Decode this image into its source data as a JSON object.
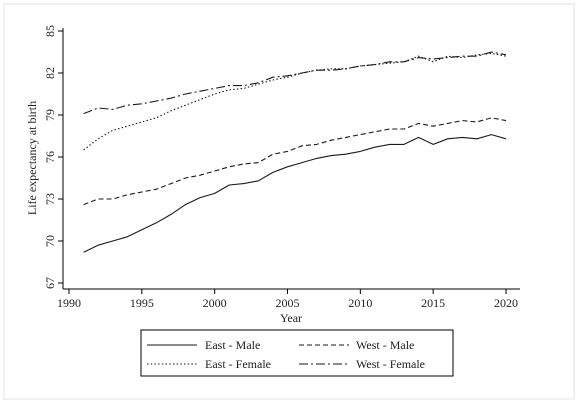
{
  "chart_data": {
    "type": "line",
    "xlabel": "Year",
    "ylabel": "Life expectancy at birth",
    "xlim": [
      1990,
      2021
    ],
    "ylim": [
      67,
      85
    ],
    "xticks": [
      1990,
      1995,
      2000,
      2005,
      2010,
      2015,
      2020
    ],
    "yticks": [
      67,
      70,
      73,
      76,
      79,
      82,
      85
    ],
    "grid": false,
    "legend_position": "bottom",
    "x": [
      1991,
      1992,
      1993,
      1994,
      1995,
      1996,
      1997,
      1998,
      1999,
      2000,
      2001,
      2002,
      2003,
      2004,
      2005,
      2006,
      2007,
      2008,
      2009,
      2010,
      2011,
      2012,
      2013,
      2014,
      2015,
      2016,
      2017,
      2018,
      2019,
      2020
    ],
    "series": [
      {
        "name": "East - Male",
        "dash": "solid",
        "values": [
          69.2,
          69.7,
          70.0,
          70.3,
          70.8,
          71.3,
          71.9,
          72.6,
          73.1,
          73.4,
          74.0,
          74.1,
          74.3,
          74.9,
          75.3,
          75.6,
          75.9,
          76.1,
          76.2,
          76.4,
          76.7,
          76.9,
          76.9,
          77.4,
          76.9,
          77.3,
          77.4,
          77.3,
          77.6,
          77.3
        ]
      },
      {
        "name": "West - Male",
        "dash": "dash",
        "values": [
          72.6,
          73.0,
          73.0,
          73.3,
          73.5,
          73.7,
          74.1,
          74.5,
          74.7,
          75.0,
          75.3,
          75.5,
          75.6,
          76.2,
          76.4,
          76.8,
          76.9,
          77.2,
          77.4,
          77.6,
          77.8,
          78.0,
          78.0,
          78.4,
          78.2,
          78.4,
          78.6,
          78.5,
          78.8,
          78.6
        ]
      },
      {
        "name": "East - Female",
        "dash": "dot",
        "values": [
          76.5,
          77.3,
          77.9,
          78.2,
          78.5,
          78.8,
          79.3,
          79.7,
          80.1,
          80.5,
          80.8,
          80.9,
          81.2,
          81.5,
          81.7,
          82.0,
          82.2,
          82.3,
          82.3,
          82.5,
          82.6,
          82.7,
          82.8,
          83.2,
          82.8,
          83.2,
          83.1,
          83.3,
          83.4,
          83.2
        ]
      },
      {
        "name": "West - Female",
        "dash": "dashdot",
        "values": [
          79.1,
          79.5,
          79.4,
          79.7,
          79.8,
          80.0,
          80.2,
          80.5,
          80.7,
          80.9,
          81.1,
          81.1,
          81.3,
          81.7,
          81.8,
          82.0,
          82.2,
          82.2,
          82.3,
          82.5,
          82.6,
          82.8,
          82.8,
          83.1,
          83.0,
          83.1,
          83.2,
          83.2,
          83.5,
          83.3
        ]
      }
    ]
  }
}
